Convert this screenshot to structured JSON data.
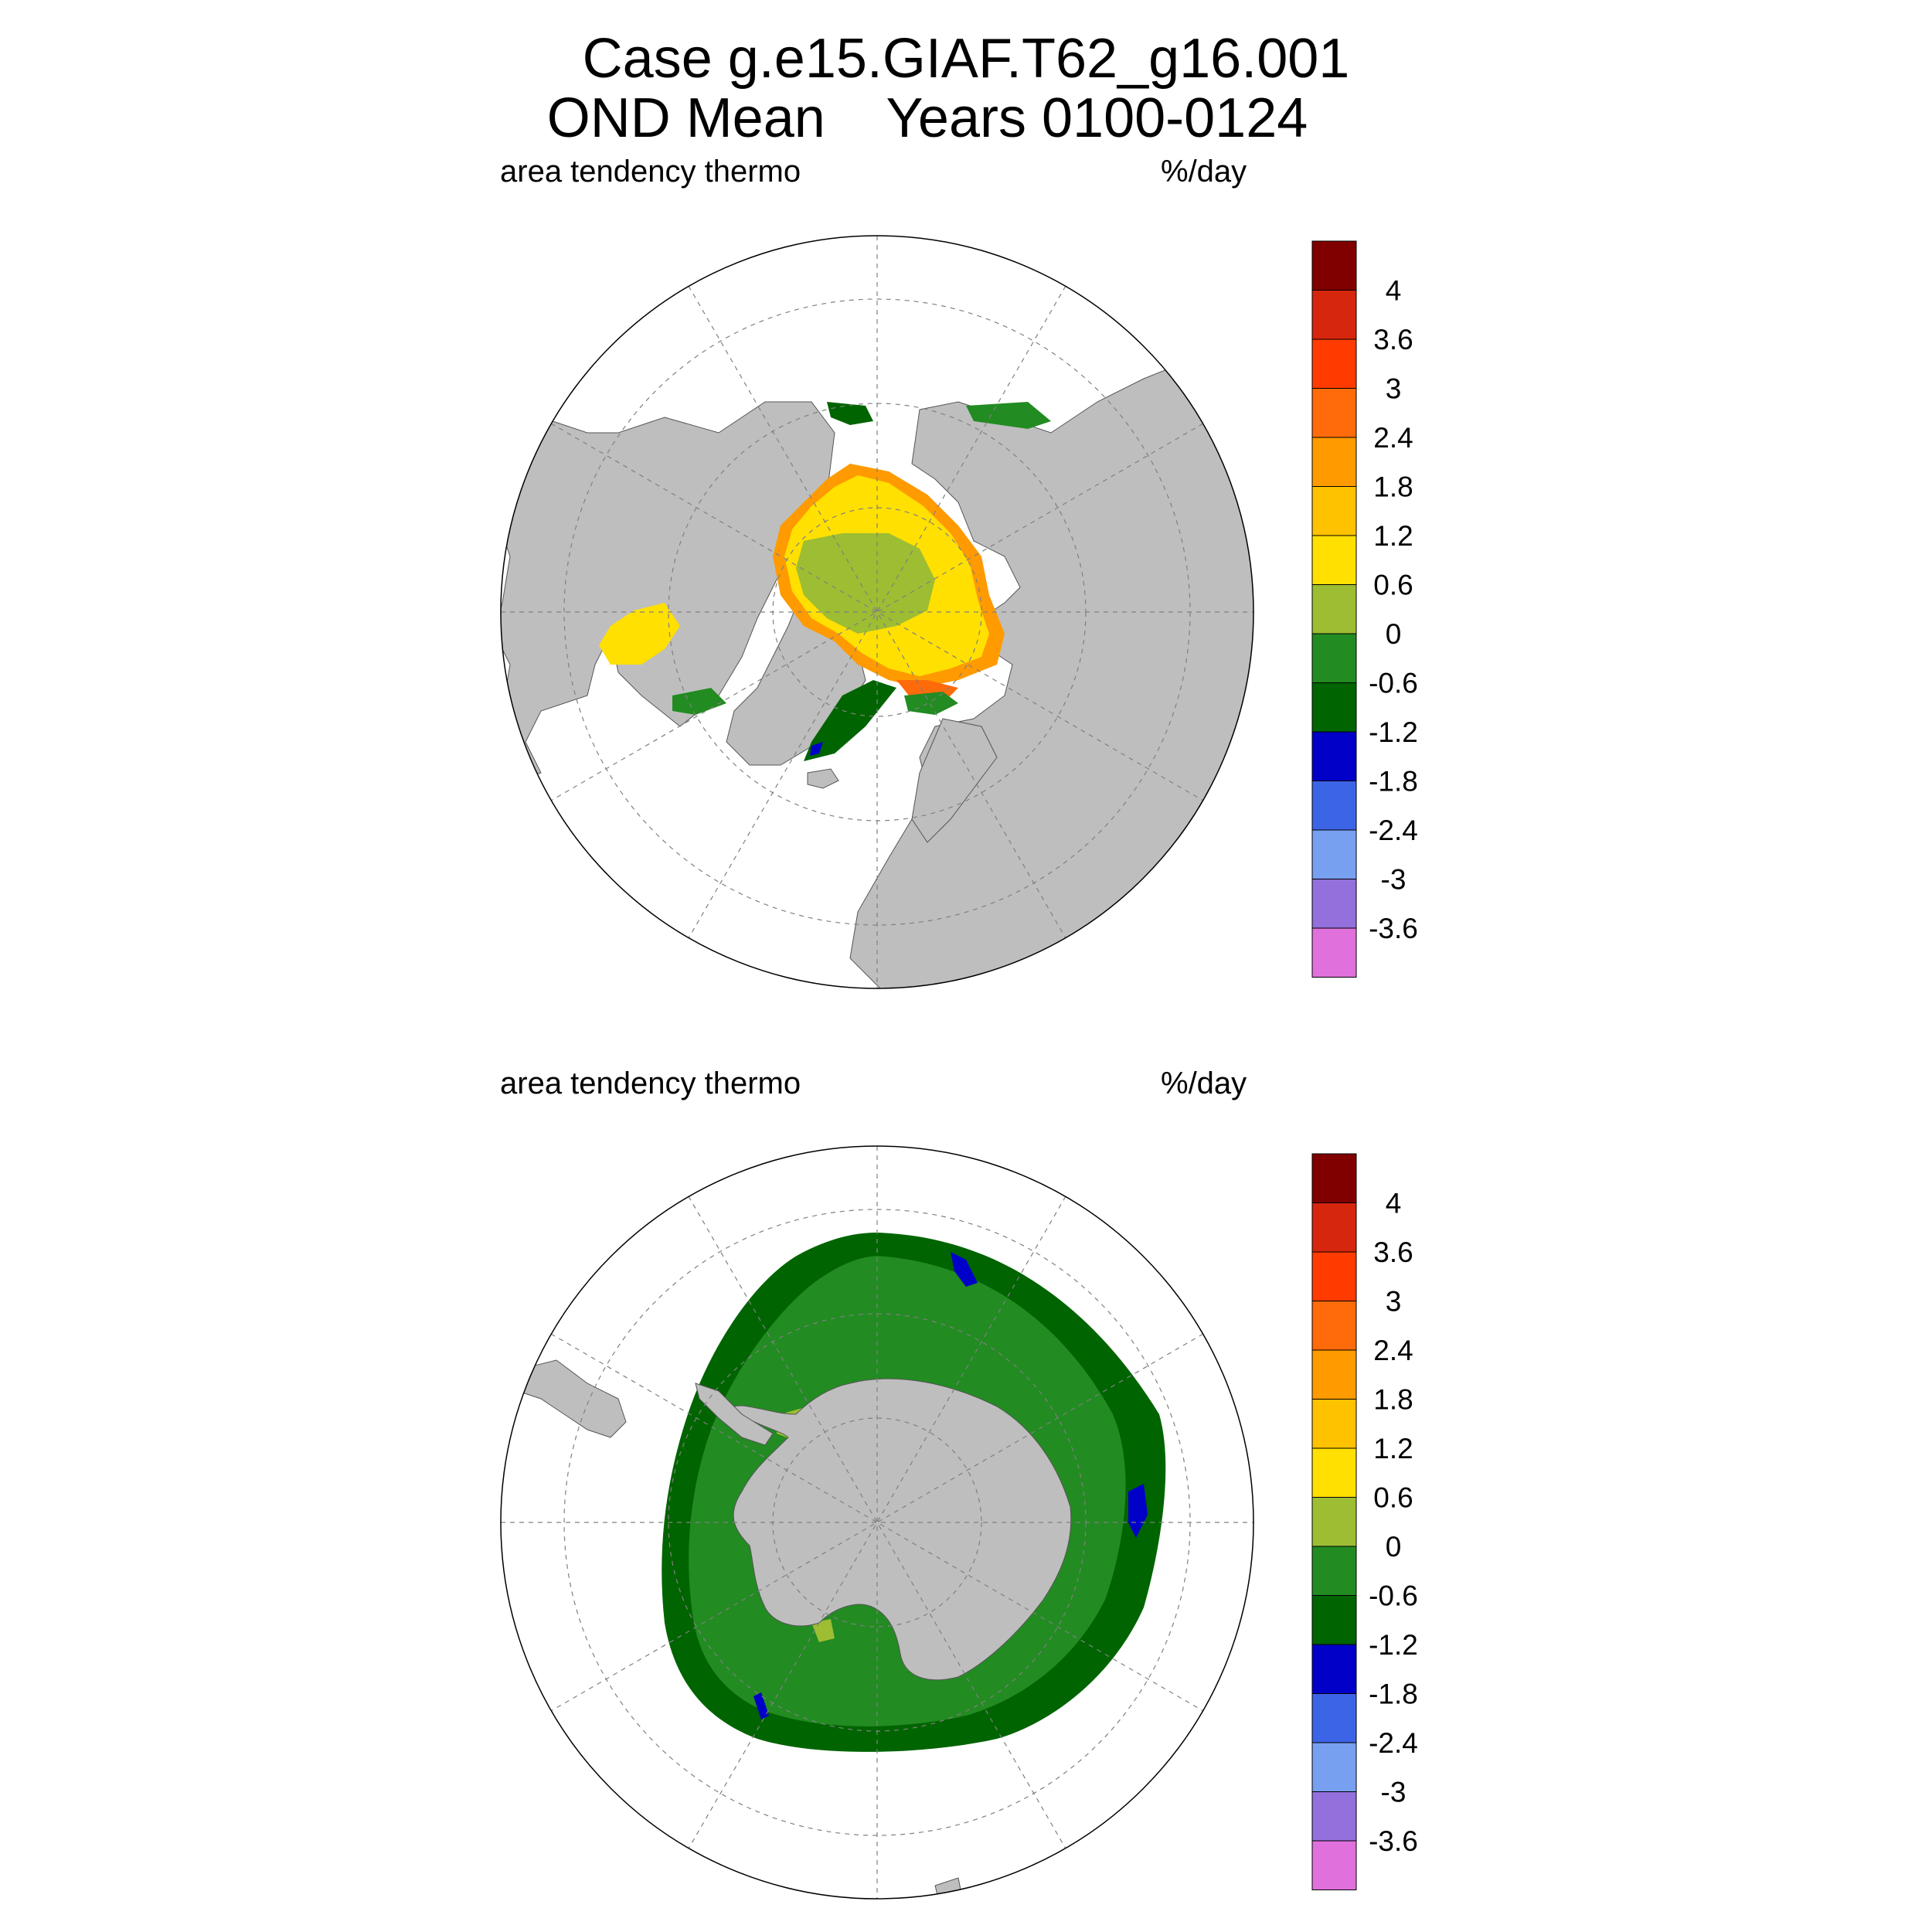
{
  "figure": {
    "title_line1": "Case g.e15.GIAF.T62_g16.001",
    "title_line2": "OND Mean    Years 0100-0124"
  },
  "panels": [
    {
      "id": "north",
      "hemisphere": "Northern Hemisphere polar stereographic",
      "left_title": "area tendency thermo",
      "right_title": "%/day"
    },
    {
      "id": "south",
      "hemisphere": "Southern Hemisphere polar stereographic",
      "left_title": "area tendency thermo",
      "right_title": "%/day"
    }
  ],
  "colorbar": {
    "colors": [
      "#800000",
      "#d7260e",
      "#ff3b00",
      "#ff6a0a",
      "#ff9a00",
      "#ffc200",
      "#ffe000",
      "#9dbd33",
      "#228b22",
      "#006400",
      "#0000c8",
      "#3c64e6",
      "#78a0f0",
      "#9370db",
      "#e070dc"
    ],
    "labels": [
      "4",
      "3.6",
      "3",
      "2.4",
      "1.8",
      "1.2",
      "0.6",
      "0",
      "-0.6",
      "-1.2",
      "-1.8",
      "-2.4",
      "-3",
      "-3.6"
    ]
  },
  "map_colors": {
    "land": "#bebebe",
    "ocean": "#ffffff",
    "grid": "#808080"
  }
}
